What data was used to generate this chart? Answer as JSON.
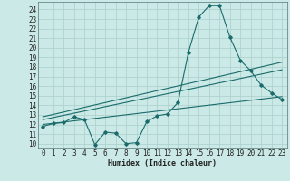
{
  "xlabel": "Humidex (Indice chaleur)",
  "xlim": [
    -0.5,
    23.5
  ],
  "ylim": [
    9.5,
    24.8
  ],
  "yticks": [
    10,
    11,
    12,
    13,
    14,
    15,
    16,
    17,
    18,
    19,
    20,
    21,
    22,
    23,
    24
  ],
  "xticks": [
    0,
    1,
    2,
    3,
    4,
    5,
    6,
    7,
    8,
    9,
    10,
    11,
    12,
    13,
    14,
    15,
    16,
    17,
    18,
    19,
    20,
    21,
    22,
    23
  ],
  "bg_color": "#cbe9e6",
  "grid_color": "#aacfcc",
  "line_color": "#1a6b6b",
  "line1_x": [
    0,
    1,
    2,
    3,
    4,
    5,
    6,
    7,
    8,
    9,
    10,
    11,
    12,
    13,
    14,
    15,
    16,
    17,
    18,
    19,
    20,
    21,
    22,
    23
  ],
  "line1_y": [
    11.8,
    12.1,
    12.2,
    12.8,
    12.5,
    9.9,
    11.2,
    11.1,
    10.0,
    10.1,
    12.3,
    12.9,
    13.1,
    14.3,
    19.5,
    23.2,
    24.4,
    24.4,
    21.1,
    18.7,
    17.6,
    16.1,
    15.3,
    14.6
  ],
  "line2_x": [
    0,
    23
  ],
  "line2_y": [
    12.0,
    14.9
  ],
  "line3_x": [
    0,
    23
  ],
  "line3_y": [
    12.5,
    17.7
  ],
  "line4_x": [
    0,
    23
  ],
  "line4_y": [
    12.8,
    18.5
  ],
  "tick_fontsize": 5.5,
  "xlabel_fontsize": 6.0
}
